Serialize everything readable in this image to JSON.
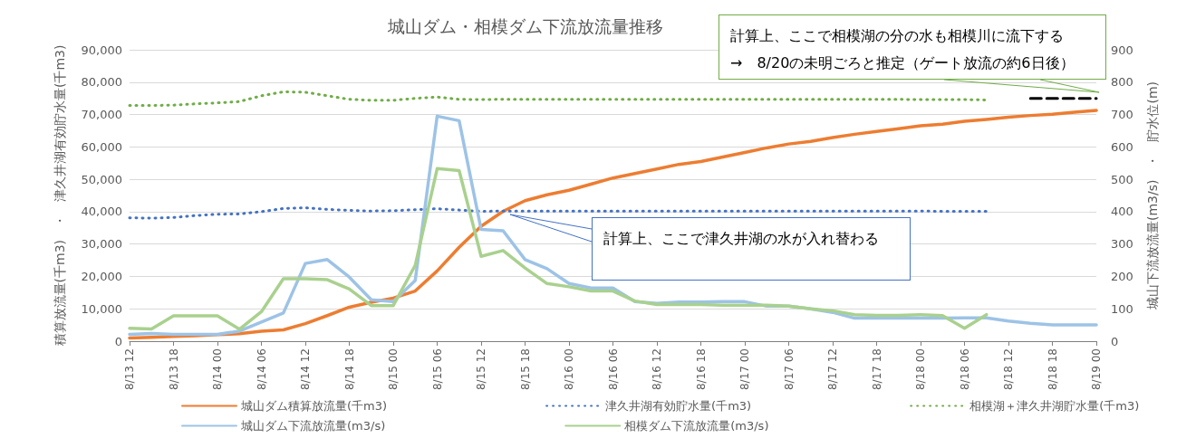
{
  "chart_data": {
    "type": "line",
    "title": "城山ダム・相模ダム下流放流量推移",
    "ylabel": "積算放流量(千m3)　・　津久井湖有効貯水量(千m3)",
    "y2label": "城山下流放流量(m3/s)　・　貯水位(m)",
    "categories": [
      "8/13 12",
      null,
      "8/13 18",
      null,
      "8/14 00",
      null,
      "8/14 06",
      null,
      "8/14 12",
      null,
      "8/14 18",
      null,
      "8/15 00",
      null,
      "8/15 06",
      null,
      "8/15 12",
      null,
      "8/15 18",
      null,
      "8/16 00",
      null,
      "8/16 06",
      null,
      "8/16 12",
      null,
      "8/16 18",
      null,
      "8/17 00",
      null,
      "8/17 06",
      null,
      "8/17 12",
      null,
      "8/17 18",
      null,
      "8/18 00",
      null,
      "8/18 06",
      null,
      "8/18 12",
      null,
      "8/18 18",
      null,
      "8/19 00"
    ],
    "series": [
      {
        "name": "城山ダム積算放流量(千m3)",
        "color": "#ed7d31",
        "line_style": "solid",
        "values": [
          1000,
          1200,
          1500,
          1700,
          2000,
          2300,
          3100,
          3500,
          5400,
          7900,
          10500,
          12000,
          13300,
          15500,
          21700,
          29000,
          35500,
          40100,
          43400,
          45200,
          46600,
          48500,
          50400,
          51800,
          53200,
          54600,
          55500,
          56900,
          58300,
          59700,
          60900,
          61700,
          62900,
          63900,
          64800,
          65600,
          66500,
          67000,
          67900,
          68500,
          69200,
          69700,
          70100,
          70700,
          71300
        ]
      },
      {
        "name": "津久井湖有効貯水量(千m3)",
        "color": "#4472c4",
        "line_style": "dotted",
        "values": [
          38100,
          38000,
          38200,
          38800,
          39200,
          39300,
          40000,
          41000,
          41200,
          40700,
          40400,
          40200,
          40300,
          40600,
          40900,
          40500,
          40100,
          40200,
          40200,
          40200,
          40200,
          40200,
          40200,
          40200,
          40200,
          40200,
          40200,
          40200,
          40200,
          40200,
          40200,
          40200,
          40200,
          40200,
          40200,
          40200,
          40200,
          40100,
          40100,
          40100,
          null,
          null,
          null,
          null,
          null
        ]
      },
      {
        "name": "相模湖＋津久井湖貯水量(千m3)",
        "color": "#70ad47",
        "line_style": "dotted",
        "values": [
          72800,
          72800,
          72900,
          73300,
          73600,
          74000,
          75800,
          77000,
          76900,
          75800,
          74700,
          74400,
          74400,
          75000,
          75400,
          74700,
          74600,
          74700,
          74700,
          74700,
          74700,
          74700,
          74700,
          74700,
          74700,
          74700,
          74700,
          74700,
          74700,
          74700,
          74700,
          74700,
          74700,
          74700,
          74700,
          74700,
          74600,
          74600,
          74600,
          74500,
          null,
          null,
          null,
          null,
          null
        ]
      },
      {
        "name": "城山ダム下流放流量(m3/s)",
        "color": "#9dc3e6",
        "line_style": "solid",
        "axis": "y2",
        "values": [
          21,
          24,
          21,
          21,
          21,
          31,
          59,
          87,
          240,
          252,
          198,
          128,
          122,
          187,
          695,
          681,
          345,
          341,
          252,
          224,
          178,
          164,
          164,
          122,
          117,
          121,
          121,
          122,
          122,
          108,
          108,
          100,
          89,
          71,
          71,
          71,
          71,
          71,
          72,
          72,
          62,
          55,
          50,
          50,
          50
        ]
      },
      {
        "name": "相模ダム下流放流量(m3/s)",
        "color": "#a9d18e",
        "line_style": "solid",
        "axis": "y2",
        "values": [
          40,
          38,
          78,
          78,
          78,
          37,
          91,
          193,
          193,
          190,
          161,
          110,
          110,
          234,
          533,
          527,
          262,
          280,
          226,
          178,
          168,
          155,
          155,
          124,
          113,
          113,
          113,
          111,
          111,
          111,
          108,
          100,
          94,
          82,
          80,
          80,
          82,
          79,
          40,
          82,
          null,
          null,
          null,
          null,
          null
        ]
      },
      {
        "color": "#000000",
        "line_style": "dashed",
        "values": [
          null,
          null,
          null,
          null,
          null,
          null,
          null,
          null,
          null,
          null,
          null,
          null,
          null,
          null,
          null,
          null,
          null,
          null,
          null,
          null,
          null,
          null,
          null,
          null,
          null,
          null,
          null,
          null,
          null,
          null,
          null,
          null,
          null,
          null,
          null,
          null,
          null,
          null,
          null,
          null,
          null,
          75000,
          75000,
          75000,
          75000
        ]
      }
    ],
    "ylim": [
      0,
      90000
    ],
    "yticks": [
      0,
      {
        "value": 10000,
        "label": "10,000"
      },
      {
        "value": 20000,
        "label": "20,000"
      },
      {
        "value": 30000,
        "label": "30,000"
      },
      {
        "value": 40000,
        "label": "40,000"
      },
      {
        "value": 50000,
        "label": "50,000"
      },
      {
        "value": 60000,
        "label": "60,000"
      },
      {
        "value": 70000,
        "label": "70,000"
      },
      {
        "value": 80000,
        "label": "80,000"
      },
      {
        "value": 90000,
        "label": "90,000"
      }
    ],
    "y2lim": [
      0,
      900
    ],
    "y2ticks": [
      0,
      100,
      200,
      300,
      400,
      500,
      600,
      700,
      800,
      900
    ],
    "grid": "y",
    "legend": "bottom",
    "marker": "none",
    "annotations": [
      "計算上、ここで相模湖の分の水も相模川に流下する\n→　8/20の未明ごろと推定（ゲート放流の約6日後）",
      "計算上、ここで津久井湖の水が入れ替わる"
    ]
  }
}
